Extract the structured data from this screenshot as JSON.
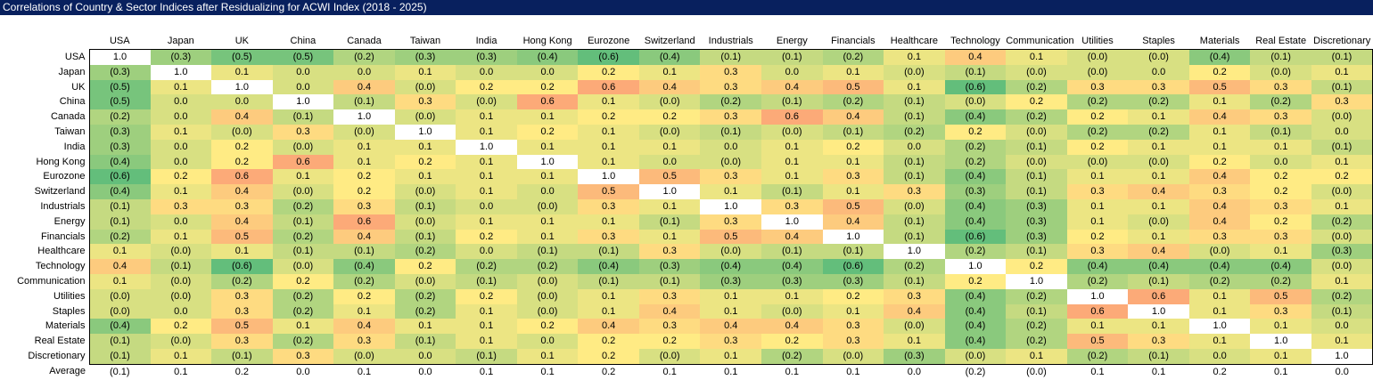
{
  "title": "Correlations of Country & Sector Indices after Residualizing for ACWI Index (2018 - 2025)",
  "colors": {
    "title_bar_bg": "#08205E",
    "title_text": "#FFFFFF",
    "scale_negative_green": "#63BE7B",
    "scale_mid_yellow": "#FFEB84",
    "scale_positive_red": "#F8696B",
    "diagonal_cell_bg": "#FFFFFF",
    "matrix_border": "#000000"
  },
  "format_note": "negative correlations displayed in parentheses",
  "chart_data": {
    "type": "heatmap",
    "title": "Correlations of Country & Sector Indices after Residualizing for ACWI Index (2018 - 2025)",
    "legend_position": "none",
    "grid": false,
    "colormap": {
      "min_value": -0.6,
      "mid_value": 0.2,
      "max_value": 1.0,
      "min_color": "#63BE7B",
      "mid_color": "#FFEB84",
      "max_color": "#F8696B",
      "diagonal": "#FFFFFF"
    },
    "columns": [
      "USA",
      "Japan",
      "UK",
      "China",
      "Canada",
      "Taiwan",
      "India",
      "Hong Kong",
      "Eurozone",
      "Switzerland",
      "Industrials",
      "Energy",
      "Financials",
      "Healthcare",
      "Technology",
      "Communication",
      "Utilities",
      "Staples",
      "Materials",
      "Real Estate",
      "Discretionary"
    ],
    "rows": [
      {
        "label": "USA",
        "values": [
          "1.0",
          "(0.3)",
          "(0.5)",
          "(0.5)",
          "(0.2)",
          "(0.3)",
          "(0.3)",
          "(0.4)",
          "(0.6)",
          "(0.4)",
          "(0.1)",
          "(0.1)",
          "(0.2)",
          "0.1",
          "0.4",
          "0.1",
          "(0.0)",
          "(0.0)",
          "(0.4)",
          "(0.1)",
          "(0.1)"
        ]
      },
      {
        "label": "Japan",
        "values": [
          "(0.3)",
          "1.0",
          "0.1",
          "0.0",
          "0.0",
          "0.1",
          "0.0",
          "0.0",
          "0.2",
          "0.1",
          "0.3",
          "0.0",
          "0.1",
          "(0.0)",
          "(0.1)",
          "(0.0)",
          "(0.0)",
          "0.0",
          "0.2",
          "(0.0)",
          "0.1"
        ]
      },
      {
        "label": "UK",
        "values": [
          "(0.5)",
          "0.1",
          "1.0",
          "0.0",
          "0.4",
          "(0.0)",
          "0.2",
          "0.2",
          "0.6",
          "0.4",
          "0.3",
          "0.4",
          "0.5",
          "0.1",
          "(0.6)",
          "(0.2)",
          "0.3",
          "0.3",
          "0.5",
          "0.3",
          "(0.1)"
        ]
      },
      {
        "label": "China",
        "values": [
          "(0.5)",
          "0.0",
          "0.0",
          "1.0",
          "(0.1)",
          "0.3",
          "(0.0)",
          "0.6",
          "0.1",
          "(0.0)",
          "(0.2)",
          "(0.1)",
          "(0.2)",
          "(0.1)",
          "(0.0)",
          "0.2",
          "(0.2)",
          "(0.2)",
          "0.1",
          "(0.2)",
          "0.3"
        ]
      },
      {
        "label": "Canada",
        "values": [
          "(0.2)",
          "0.0",
          "0.4",
          "(0.1)",
          "1.0",
          "(0.0)",
          "0.1",
          "0.1",
          "0.2",
          "0.2",
          "0.3",
          "0.6",
          "0.4",
          "(0.1)",
          "(0.4)",
          "(0.2)",
          "0.2",
          "0.1",
          "0.4",
          "0.3",
          "(0.0)"
        ]
      },
      {
        "label": "Taiwan",
        "values": [
          "(0.3)",
          "0.1",
          "(0.0)",
          "0.3",
          "(0.0)",
          "1.0",
          "0.1",
          "0.2",
          "0.1",
          "(0.0)",
          "(0.1)",
          "(0.0)",
          "(0.1)",
          "(0.2)",
          "0.2",
          "(0.0)",
          "(0.2)",
          "(0.2)",
          "0.1",
          "(0.1)",
          "0.0"
        ]
      },
      {
        "label": "India",
        "values": [
          "(0.3)",
          "0.0",
          "0.2",
          "(0.0)",
          "0.1",
          "0.1",
          "1.0",
          "0.1",
          "0.1",
          "0.1",
          "0.0",
          "0.1",
          "0.2",
          "0.0",
          "(0.2)",
          "(0.1)",
          "0.2",
          "0.1",
          "0.1",
          "0.1",
          "(0.1)"
        ]
      },
      {
        "label": "Hong Kong",
        "values": [
          "(0.4)",
          "0.0",
          "0.2",
          "0.6",
          "0.1",
          "0.2",
          "0.1",
          "1.0",
          "0.1",
          "0.0",
          "(0.0)",
          "0.1",
          "0.1",
          "(0.1)",
          "(0.2)",
          "(0.0)",
          "(0.0)",
          "(0.0)",
          "0.2",
          "0.0",
          "0.1"
        ]
      },
      {
        "label": "Eurozone",
        "values": [
          "(0.6)",
          "0.2",
          "0.6",
          "0.1",
          "0.2",
          "0.1",
          "0.1",
          "0.1",
          "1.0",
          "0.5",
          "0.3",
          "0.1",
          "0.3",
          "(0.1)",
          "(0.4)",
          "(0.1)",
          "0.1",
          "0.1",
          "0.4",
          "0.2",
          "0.2"
        ]
      },
      {
        "label": "Switzerland",
        "values": [
          "(0.4)",
          "0.1",
          "0.4",
          "(0.0)",
          "0.2",
          "(0.0)",
          "0.1",
          "0.0",
          "0.5",
          "1.0",
          "0.1",
          "(0.1)",
          "0.1",
          "0.3",
          "(0.3)",
          "(0.1)",
          "0.3",
          "0.4",
          "0.3",
          "0.2",
          "(0.0)"
        ]
      },
      {
        "label": "Industrials",
        "values": [
          "(0.1)",
          "0.3",
          "0.3",
          "(0.2)",
          "0.3",
          "(0.1)",
          "0.0",
          "(0.0)",
          "0.3",
          "0.1",
          "1.0",
          "0.3",
          "0.5",
          "(0.0)",
          "(0.4)",
          "(0.3)",
          "0.1",
          "0.1",
          "0.4",
          "0.3",
          "0.1"
        ]
      },
      {
        "label": "Energy",
        "values": [
          "(0.1)",
          "0.0",
          "0.4",
          "(0.1)",
          "0.6",
          "(0.0)",
          "0.1",
          "0.1",
          "0.1",
          "(0.1)",
          "0.3",
          "1.0",
          "0.4",
          "(0.1)",
          "(0.4)",
          "(0.3)",
          "0.1",
          "(0.0)",
          "0.4",
          "0.2",
          "(0.2)"
        ]
      },
      {
        "label": "Financials",
        "values": [
          "(0.2)",
          "0.1",
          "0.5",
          "(0.2)",
          "0.4",
          "(0.1)",
          "0.2",
          "0.1",
          "0.3",
          "0.1",
          "0.5",
          "0.4",
          "1.0",
          "(0.1)",
          "(0.6)",
          "(0.3)",
          "0.2",
          "0.1",
          "0.3",
          "0.3",
          "(0.0)"
        ]
      },
      {
        "label": "Healthcare",
        "values": [
          "0.1",
          "(0.0)",
          "0.1",
          "(0.1)",
          "(0.1)",
          "(0.2)",
          "0.0",
          "(0.1)",
          "(0.1)",
          "0.3",
          "(0.0)",
          "(0.1)",
          "(0.1)",
          "1.0",
          "(0.2)",
          "(0.1)",
          "0.3",
          "0.4",
          "(0.0)",
          "0.1",
          "(0.3)"
        ]
      },
      {
        "label": "Technology",
        "values": [
          "0.4",
          "(0.1)",
          "(0.6)",
          "(0.0)",
          "(0.4)",
          "0.2",
          "(0.2)",
          "(0.2)",
          "(0.4)",
          "(0.3)",
          "(0.4)",
          "(0.4)",
          "(0.6)",
          "(0.2)",
          "1.0",
          "0.2",
          "(0.4)",
          "(0.4)",
          "(0.4)",
          "(0.4)",
          "(0.0)"
        ]
      },
      {
        "label": "Communication",
        "values": [
          "0.1",
          "(0.0)",
          "(0.2)",
          "0.2",
          "(0.2)",
          "(0.0)",
          "(0.1)",
          "(0.0)",
          "(0.1)",
          "(0.1)",
          "(0.3)",
          "(0.3)",
          "(0.3)",
          "(0.1)",
          "0.2",
          "1.0",
          "(0.2)",
          "(0.1)",
          "(0.2)",
          "(0.2)",
          "0.1"
        ]
      },
      {
        "label": "Utilities",
        "values": [
          "(0.0)",
          "(0.0)",
          "0.3",
          "(0.2)",
          "0.2",
          "(0.2)",
          "0.2",
          "(0.0)",
          "0.1",
          "0.3",
          "0.1",
          "0.1",
          "0.2",
          "0.3",
          "(0.4)",
          "(0.2)",
          "1.0",
          "0.6",
          "0.1",
          "0.5",
          "(0.2)"
        ]
      },
      {
        "label": "Staples",
        "values": [
          "(0.0)",
          "0.0",
          "0.3",
          "(0.2)",
          "0.1",
          "(0.2)",
          "0.1",
          "(0.0)",
          "0.1",
          "0.4",
          "0.1",
          "(0.0)",
          "0.1",
          "0.4",
          "(0.4)",
          "(0.1)",
          "0.6",
          "1.0",
          "0.1",
          "0.3",
          "(0.1)"
        ]
      },
      {
        "label": "Materials",
        "values": [
          "(0.4)",
          "0.2",
          "0.5",
          "0.1",
          "0.4",
          "0.1",
          "0.1",
          "0.2",
          "0.4",
          "0.3",
          "0.4",
          "0.4",
          "0.3",
          "(0.0)",
          "(0.4)",
          "(0.2)",
          "0.1",
          "0.1",
          "1.0",
          "0.1",
          "0.0"
        ]
      },
      {
        "label": "Real Estate",
        "values": [
          "(0.1)",
          "(0.0)",
          "0.3",
          "(0.2)",
          "0.3",
          "(0.1)",
          "0.1",
          "0.0",
          "0.2",
          "0.2",
          "0.3",
          "0.2",
          "0.3",
          "0.1",
          "(0.4)",
          "(0.2)",
          "0.5",
          "0.3",
          "0.1",
          "1.0",
          "0.1"
        ]
      },
      {
        "label": "Discretionary",
        "values": [
          "(0.1)",
          "0.1",
          "(0.1)",
          "0.3",
          "(0.0)",
          "0.0",
          "(0.1)",
          "0.1",
          "0.2",
          "(0.0)",
          "0.1",
          "(0.2)",
          "(0.0)",
          "(0.3)",
          "(0.0)",
          "0.1",
          "(0.2)",
          "(0.1)",
          "0.0",
          "0.1",
          "1.0"
        ]
      }
    ],
    "average_row": {
      "label": "Average",
      "values": [
        "(0.1)",
        "0.1",
        "0.2",
        "0.0",
        "0.1",
        "0.0",
        "0.1",
        "0.1",
        "0.2",
        "0.1",
        "0.1",
        "0.1",
        "0.1",
        "0.0",
        "(0.2)",
        "(0.0)",
        "0.1",
        "0.1",
        "0.2",
        "0.1",
        "0.0"
      ]
    }
  }
}
